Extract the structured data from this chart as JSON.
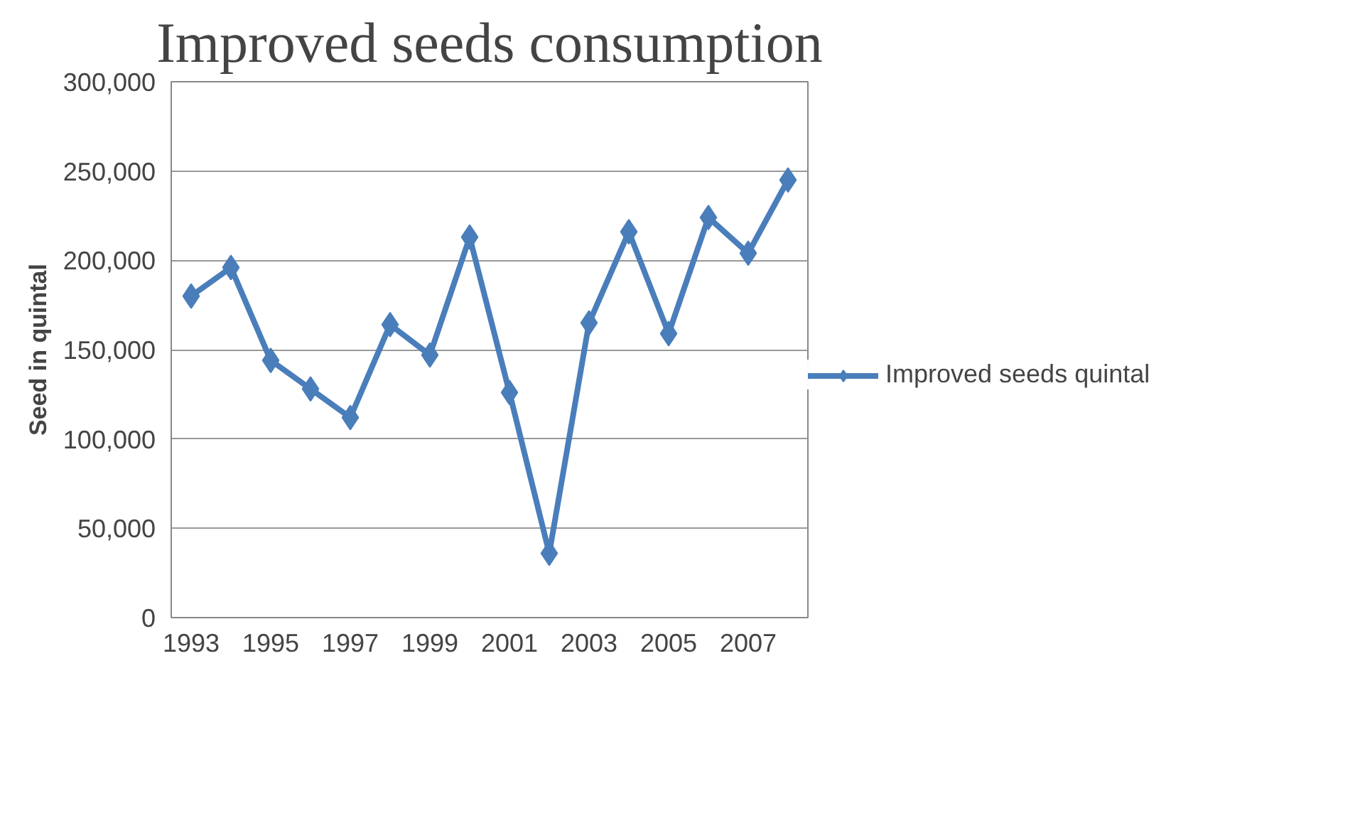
{
  "chart_data": {
    "type": "line",
    "title": "Improved seeds consumption",
    "ylabel": "Seed in quintal",
    "categories": [
      "1993",
      null,
      "1995",
      null,
      "1997",
      null,
      "1999",
      null,
      "2001",
      null,
      "2003",
      null,
      "2005",
      null,
      "2007",
      null
    ],
    "series": [
      {
        "name": "Improved seeds quintal",
        "color": "#4a7ebb",
        "values": [
          180000,
          196000,
          144000,
          128000,
          112000,
          164000,
          147000,
          213000,
          126000,
          36000,
          165000,
          216000,
          159000,
          224000,
          204000,
          245000
        ]
      }
    ],
    "ylim": [
      0,
      300000
    ],
    "yticks": [
      {
        "value": 0,
        "label": "0"
      },
      {
        "value": 50000,
        "label": "50,000"
      },
      {
        "value": 100000,
        "label": "100,000"
      },
      {
        "value": 150000,
        "label": "150,000"
      },
      {
        "value": 200000,
        "label": "200,000"
      },
      {
        "value": 250000,
        "label": "250,000"
      },
      {
        "value": 300000,
        "label": "300,000"
      }
    ],
    "grid": "y",
    "legend": "right",
    "marker": "diamond",
    "line_style": "solid"
  }
}
